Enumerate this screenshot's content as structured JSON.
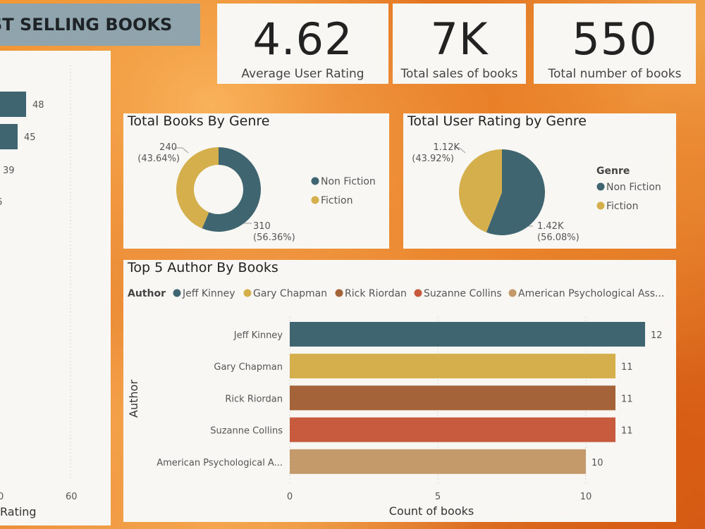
{
  "header": {
    "title": "ST SELLING BOOKS"
  },
  "kpis": [
    {
      "value": "4.62",
      "label": "Average User Rating"
    },
    {
      "value": "7K",
      "label": "Total sales of books"
    },
    {
      "value": "550",
      "label": "Total number of books"
    }
  ],
  "colors": {
    "teal": "#3f6570",
    "gold": "#d4af4c",
    "brown": "#a5633a",
    "red": "#c85b3e",
    "tan": "#c59a6a"
  },
  "chart_data": [
    {
      "type": "bar",
      "orientation": "horizontal",
      "title": "",
      "xlabel": "Rating",
      "x_ticks": [
        "0",
        "60"
      ],
      "data_labels": [
        "48",
        "45",
        "39",
        "6"
      ]
    },
    {
      "type": "pie",
      "variant": "donut",
      "title": "Total Books By Genre",
      "categories": [
        "Non Fiction",
        "Fiction"
      ],
      "values": [
        310,
        240
      ],
      "labels": [
        "310\n(56.36%)",
        "240\n(43.64%)"
      ],
      "label_lines": [
        [
          "310",
          "(56.36%)"
        ],
        [
          "240",
          "(43.64%)"
        ]
      ],
      "legend": [
        "Non Fiction",
        "Fiction"
      ]
    },
    {
      "type": "pie",
      "title": "Total User Rating by Genre",
      "categories": [
        "Non Fiction",
        "Fiction"
      ],
      "values": [
        1.42,
        1.12
      ],
      "label_lines": [
        [
          "1.42K",
          "(56.08%)"
        ],
        [
          "1.12K",
          "(43.92%)"
        ]
      ],
      "legend_title": "Genre",
      "legend": [
        "Non Fiction",
        "Fiction"
      ]
    },
    {
      "type": "bar",
      "orientation": "horizontal",
      "title": "Top 5 Author By Books",
      "legend_title": "Author",
      "legend": [
        "Jeff Kinney",
        "Gary Chapman",
        "Rick Riordan",
        "Suzanne Collins",
        "American Psychological Ass..."
      ],
      "categories": [
        "Jeff Kinney",
        "Gary Chapman",
        "Rick Riordan",
        "Suzanne Collins",
        "American Psychological A..."
      ],
      "values": [
        12,
        11,
        11,
        11,
        10
      ],
      "xlabel": "Count of books",
      "ylabel": "Author",
      "x_ticks": [
        0,
        5,
        10
      ],
      "xlim": [
        0,
        12.5
      ]
    }
  ]
}
